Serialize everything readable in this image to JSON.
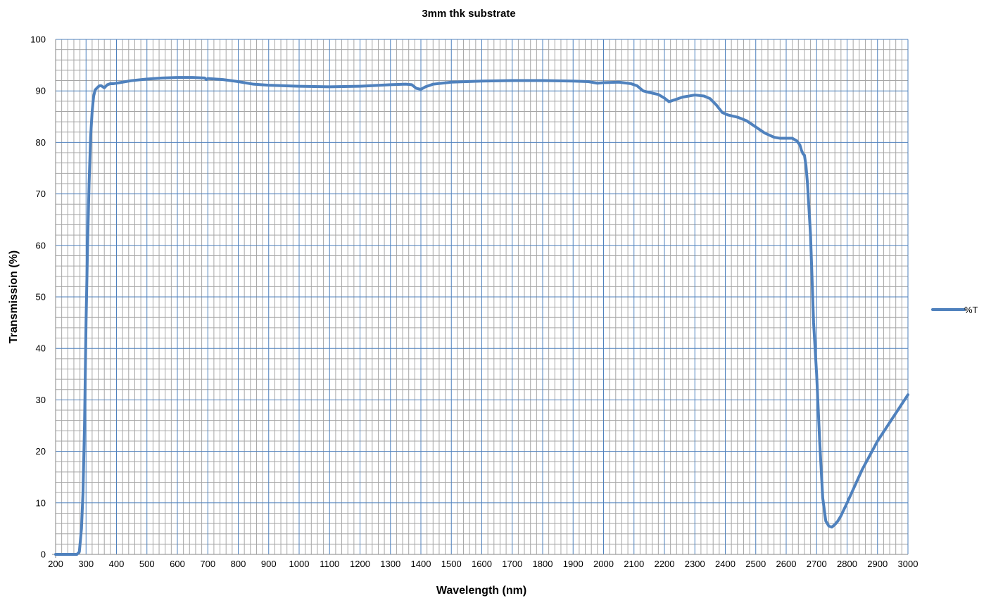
{
  "chart_data": {
    "type": "line",
    "title": "3mm thk substrate",
    "xlabel": "Wavelength (nm)",
    "ylabel": "Transmission (%)",
    "xlim": [
      200,
      3000
    ],
    "ylim": [
      0,
      100
    ],
    "x_ticks": [
      200,
      300,
      400,
      500,
      600,
      700,
      800,
      900,
      1000,
      1100,
      1200,
      1300,
      1400,
      1500,
      1600,
      1700,
      1800,
      1900,
      2000,
      2100,
      2200,
      2300,
      2400,
      2500,
      2600,
      2700,
      2800,
      2900,
      3000
    ],
    "y_ticks": [
      0,
      10,
      20,
      30,
      40,
      50,
      60,
      70,
      80,
      90,
      100
    ],
    "x_minor_step": 20,
    "y_minor_step": 2,
    "grid": true,
    "legend_position": "right",
    "colors": {
      "series": "#4f81bd",
      "major_grid": "#4f81bd",
      "minor_grid": "#a6a6a6",
      "axis": "#868686"
    },
    "series": [
      {
        "name": "%T",
        "x": [
          200,
          270,
          278,
          285,
          290,
          295,
          300,
          305,
          310,
          315,
          320,
          325,
          330,
          335,
          340,
          345,
          350,
          360,
          370,
          380,
          390,
          400,
          420,
          450,
          500,
          550,
          600,
          650,
          690,
          695,
          700,
          750,
          800,
          850,
          900,
          1000,
          1100,
          1200,
          1300,
          1350,
          1370,
          1385,
          1400,
          1415,
          1440,
          1500,
          1600,
          1700,
          1800,
          1900,
          1950,
          1980,
          2000,
          2050,
          2090,
          2110,
          2130,
          2150,
          2180,
          2200,
          2215,
          2230,
          2260,
          2300,
          2330,
          2350,
          2370,
          2390,
          2410,
          2440,
          2470,
          2500,
          2530,
          2560,
          2580,
          2600,
          2620,
          2635,
          2645,
          2650,
          2655,
          2660,
          2665,
          2670,
          2680,
          2690,
          2700,
          2710,
          2720,
          2730,
          2740,
          2750,
          2760,
          2770,
          2780,
          2800,
          2850,
          2900,
          2950,
          3000
        ],
        "y": [
          0,
          0,
          0.5,
          5,
          12,
          25,
          45,
          60,
          72,
          81,
          86,
          89,
          90.2,
          90.5,
          90.8,
          91.0,
          91.0,
          90.6,
          91.2,
          91.4,
          91.4,
          91.5,
          91.7,
          92.0,
          92.3,
          92.5,
          92.6,
          92.6,
          92.5,
          92.2,
          92.4,
          92.2,
          91.8,
          91.3,
          91.1,
          90.9,
          90.8,
          90.9,
          91.2,
          91.3,
          91.2,
          90.5,
          90.3,
          90.8,
          91.3,
          91.7,
          91.9,
          92.0,
          92.0,
          91.9,
          91.8,
          91.5,
          91.6,
          91.7,
          91.4,
          91.0,
          90.0,
          89.7,
          89.3,
          88.6,
          87.9,
          88.2,
          88.8,
          89.2,
          89.0,
          88.5,
          87.3,
          85.8,
          85.3,
          84.9,
          84.2,
          83.0,
          81.8,
          81.0,
          80.8,
          80.8,
          80.8,
          80.3,
          79.5,
          78.5,
          77.8,
          77.5,
          75.5,
          72.0,
          62.0,
          45.0,
          35.0,
          22.0,
          11.0,
          6.5,
          5.5,
          5.3,
          5.8,
          6.5,
          7.5,
          10.0,
          16.5,
          22.0,
          26.5,
          31.0
        ]
      }
    ]
  }
}
